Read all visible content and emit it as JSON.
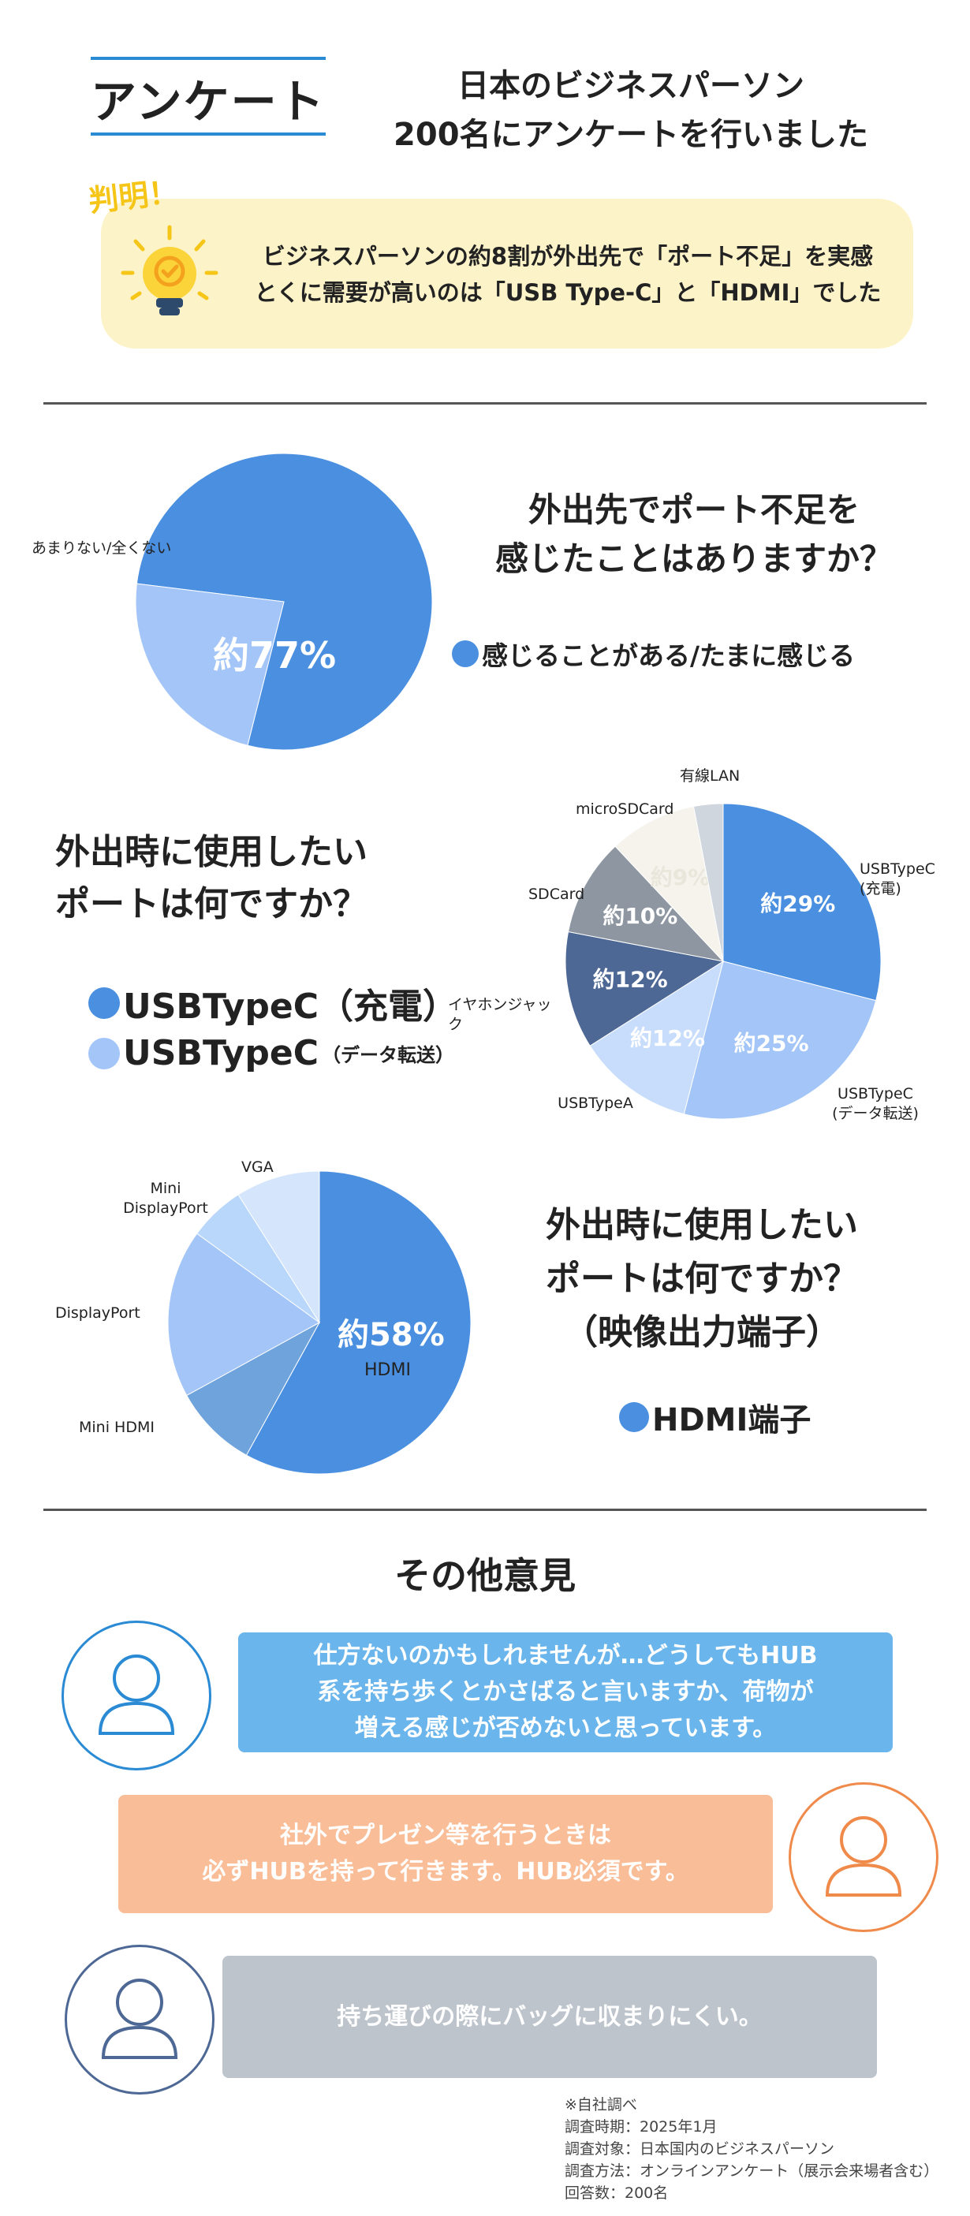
{
  "header": {
    "title": "アンケート",
    "subtitle_lines": [
      "日本のビジネスパーソン",
      "200名にアンケートを行いました"
    ]
  },
  "finding": {
    "tag": "判明！",
    "lines": [
      "ビジネスパーソンの約8割が外出先で「ポート不足」を実感",
      "とくに需要が高いのは「USB Type-C」と「HDMI」でした"
    ],
    "icon": "lightbulb-icon"
  },
  "colors": {
    "blue": "#4a8fe0",
    "light_blue": "#a3c5f8",
    "navy": "#4e6895",
    "gray": "#8d96a1",
    "cream": "#f5f3ec",
    "pale_gray": "#cfd6dd"
  },
  "chart_data": [
    {
      "type": "pie",
      "title_lines": [
        "外出先でポート不足を",
        "感じたことはありますか？"
      ],
      "slices": [
        {
          "label": "感じることがある/たまに感じる",
          "value": 77,
          "display": "約77%",
          "color": "#4a8fe0"
        },
        {
          "label": "あまりない/全くない",
          "value": 23,
          "display": "",
          "color": "#a3c5f8"
        }
      ],
      "legend": [
        "感じることがある/たまに感じる"
      ]
    },
    {
      "type": "pie",
      "title_lines": [
        "外出時に使用したい",
        "ポートは何ですか？"
      ],
      "slices": [
        {
          "label": "USBTypeC\n(充電)",
          "value": 29,
          "display": "約29%",
          "color": "#4a8fe0"
        },
        {
          "label": "USBTypeC\n(データ転送)",
          "value": 25,
          "display": "約25%",
          "color": "#a3c5f8"
        },
        {
          "label": "USBTypeA",
          "value": 12,
          "display": "約12%",
          "color": "#c7ddfb"
        },
        {
          "label": "イヤホンジャック",
          "value": 12,
          "display": "約12%",
          "color": "#4e6895"
        },
        {
          "label": "SDCard",
          "value": 10,
          "display": "約10%",
          "color": "#8d96a1"
        },
        {
          "label": "microSDCard",
          "value": 9,
          "display": "約9%",
          "color": "#f5f3ec"
        },
        {
          "label": "有線LAN",
          "value": 3,
          "display": "",
          "color": "#cfd6dd"
        }
      ],
      "legend": [
        {
          "label": "USBTypeC（充電）",
          "color": "#4a8fe0"
        },
        {
          "label": "USBTypeC",
          "suffix": "（データ転送）",
          "color": "#a3c5f8"
        }
      ]
    },
    {
      "type": "pie",
      "title_lines": [
        "外出時に使用したい",
        "ポートは何ですか？",
        "（映像出力端子）"
      ],
      "slices": [
        {
          "label": "HDMI",
          "value": 58,
          "display": "約58%",
          "color": "#4a8fe0"
        },
        {
          "label": "Mini HDMI",
          "value": 9,
          "display": "",
          "color": "#6fa3dc"
        },
        {
          "label": "DisplayPort",
          "value": 18,
          "display": "",
          "color": "#a3c5f8"
        },
        {
          "label": "Mini\nDisplayPort",
          "value": 6,
          "display": "",
          "color": "#b9d7fb"
        },
        {
          "label": "VGA",
          "value": 9,
          "display": "",
          "color": "#d4e5fc"
        }
      ],
      "legend": [
        "HDMI端子"
      ]
    }
  ],
  "opinions": {
    "title": "その他意見",
    "items": [
      {
        "lines": [
          "仕方ないのかもしれませんが…どうしてもHUB",
          "系を持ち歩くとかさばると言いますか、荷物が",
          "増える感じが否めないと思っています。"
        ],
        "color": "#6ab5ec",
        "avatar_color": "#2a8ad4"
      },
      {
        "lines": [
          "社外でプレゼン等を行うときは",
          "必ずHUBを持って行きます。HUB必須です。"
        ],
        "color": "#f9bd97",
        "avatar_color": "#ef8a4a"
      },
      {
        "lines": [
          "持ち運びの際にバッグに収まりにくい。"
        ],
        "color": "#bec4cc",
        "avatar_color": "#4e6895"
      }
    ]
  },
  "footnote": [
    "※自社調べ",
    "調査時期：2025年1月",
    "調査対象：日本国内のビジネスパーソン",
    "調査方法：オンラインアンケート（展示会来場者含む）",
    "回答数：200名"
  ]
}
